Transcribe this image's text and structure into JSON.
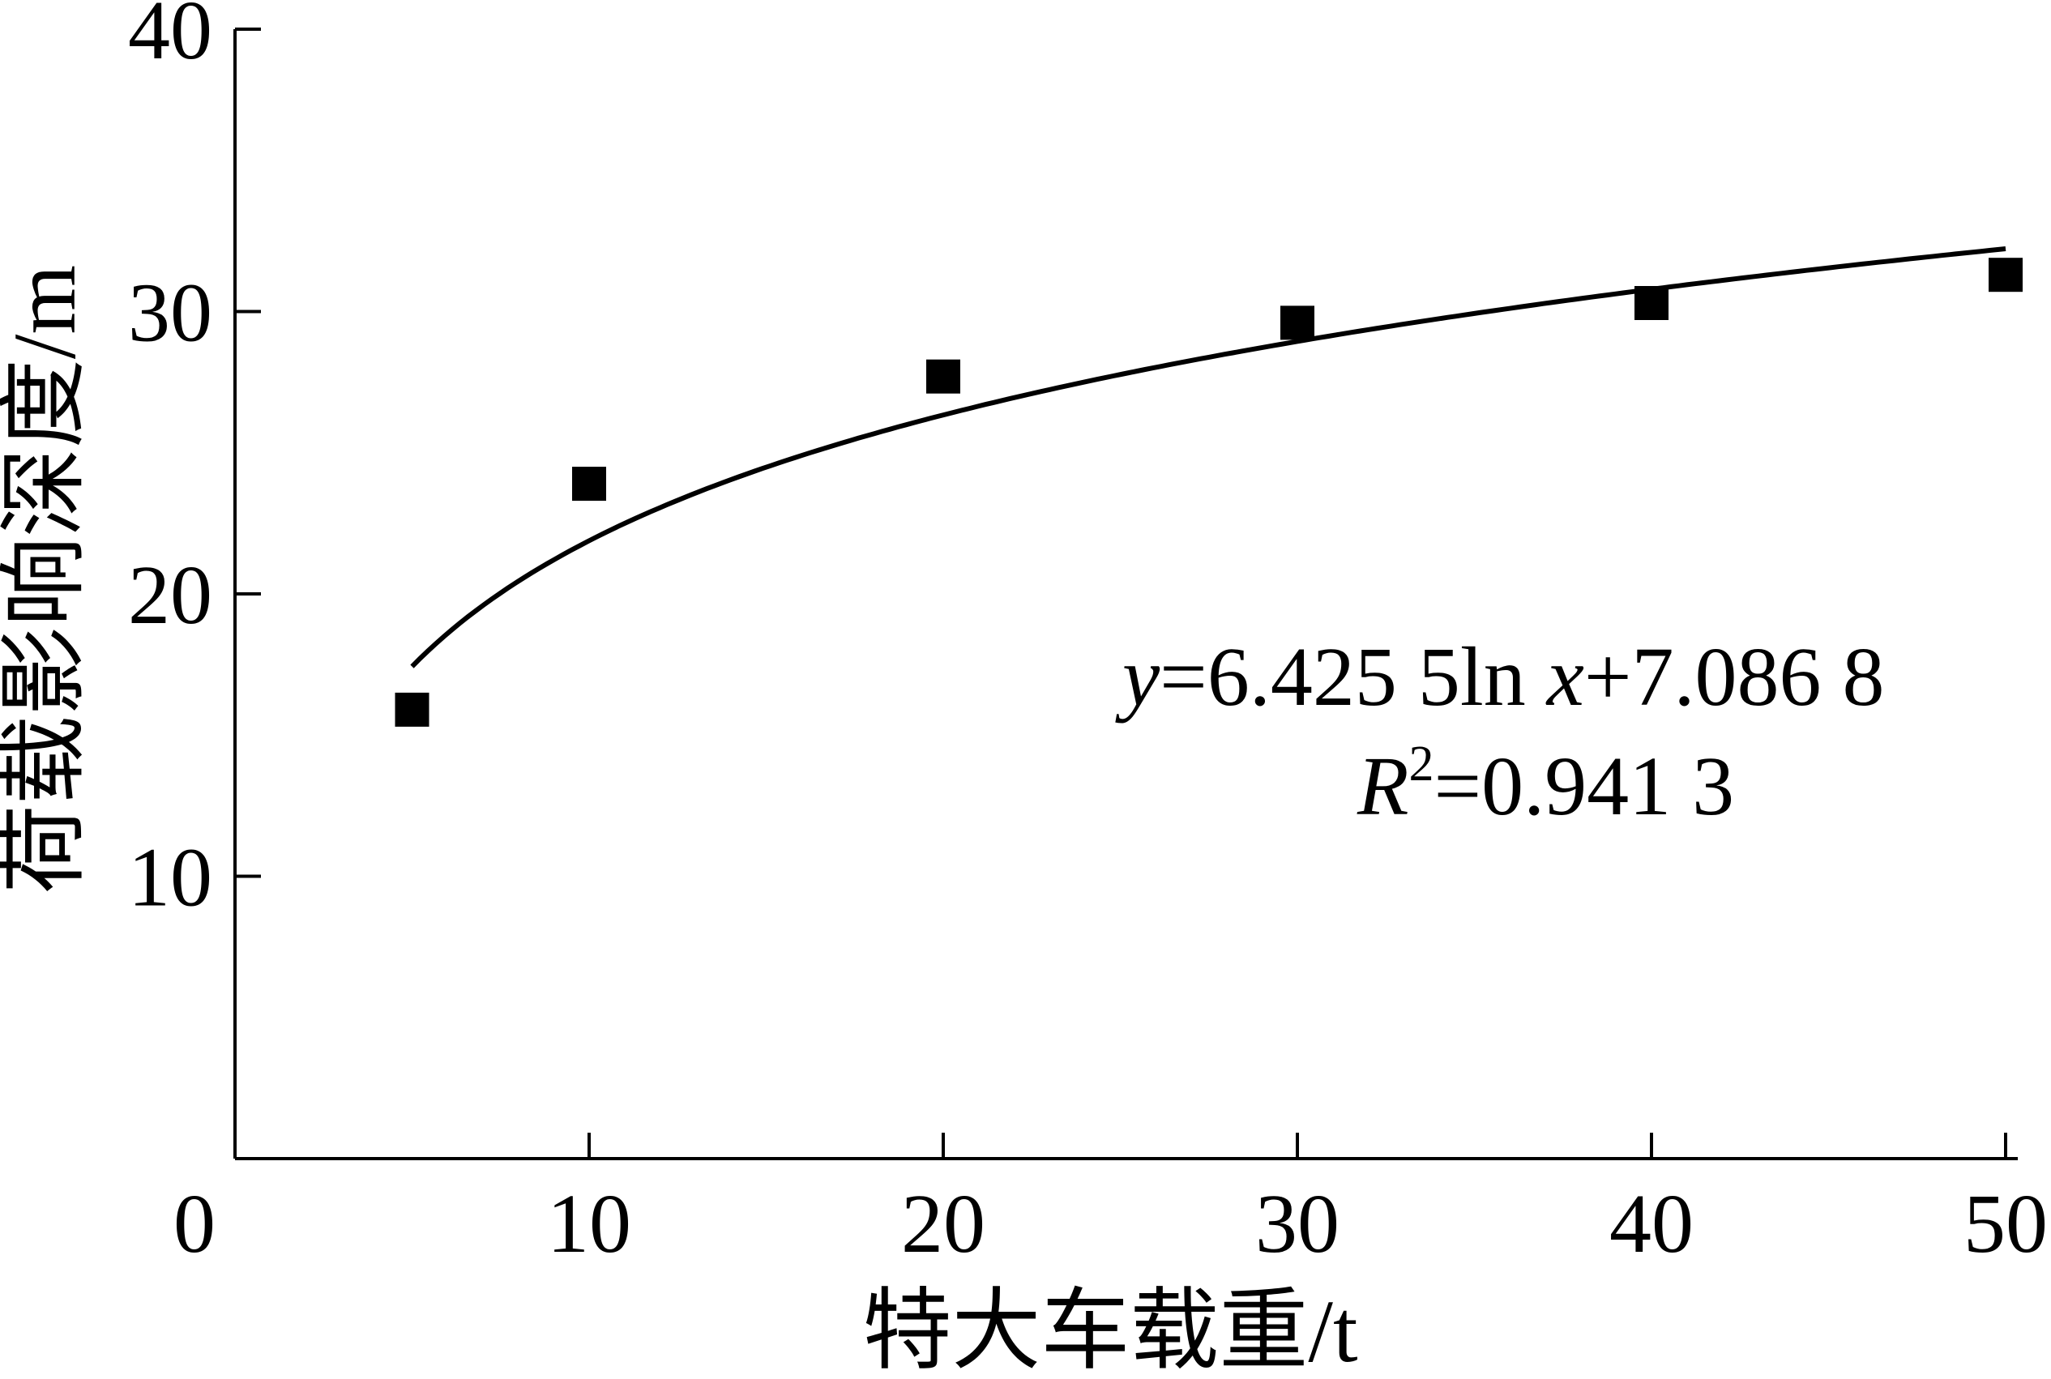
{
  "chart_data": {
    "type": "scatter",
    "xlabel": "特大车载重/t",
    "ylabel": "荷载影响深度/m",
    "xlim": [
      0,
      50
    ],
    "ylim": [
      0,
      40
    ],
    "x_ticks": [
      "10",
      "20",
      "30",
      "40",
      "50"
    ],
    "y_ticks": [
      "10",
      "20",
      "30",
      "40"
    ],
    "origin_label": "0",
    "grid": false,
    "series": [
      {
        "marker": "square",
        "color": "#000000",
        "points": [
          {
            "x": 5,
            "y": 15.9
          },
          {
            "x": 10,
            "y": 23.9
          },
          {
            "x": 20,
            "y": 27.7
          },
          {
            "x": 30,
            "y": 29.6
          },
          {
            "x": 40,
            "y": 30.3
          },
          {
            "x": 50,
            "y": 31.3
          }
        ]
      }
    ],
    "fit": {
      "kind": "logarithmic",
      "a": 6.4255,
      "b": 7.0868,
      "x_range": [
        5,
        50
      ],
      "equation_parts": {
        "y_var": "y",
        "y_rest": "=6.425 5ln ",
        "x_var": "x",
        "x_rest": "+7.086 8",
        "r_var": "R",
        "r_sup": "2",
        "r_rest": "=0.941 3"
      }
    }
  }
}
